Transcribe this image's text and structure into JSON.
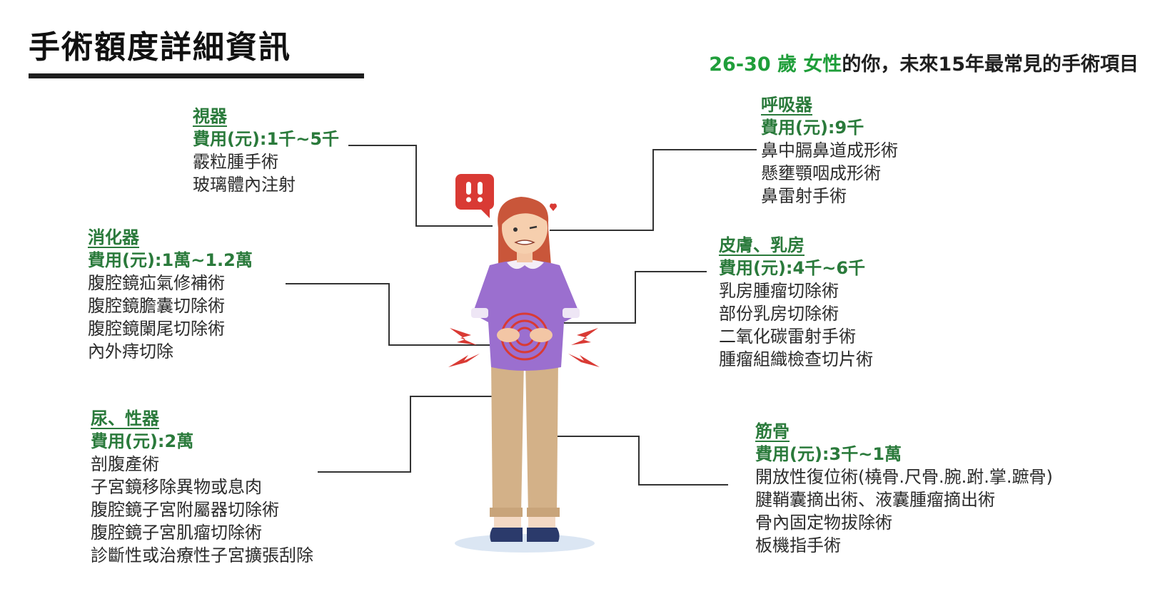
{
  "title": "手術額度詳細資訊",
  "subtitle": {
    "age": "26-30 歲",
    "gender": "女性",
    "rest": "的你，未來15年最常見的手術項目"
  },
  "sections": {
    "vision": {
      "title": "視器",
      "cost": "費用(元):1千~5千",
      "items": [
        "霰粒腫手術",
        "玻璃體內注射"
      ]
    },
    "digestive": {
      "title": "消化器",
      "cost": "費用(元):1萬~1.2萬",
      "items": [
        "腹腔鏡疝氣修補術",
        "腹腔鏡膽囊切除術",
        "腹腔鏡闌尾切除術",
        "內外痔切除"
      ]
    },
    "urogenital": {
      "title": "尿、性器",
      "cost": "費用(元):2萬",
      "items": [
        "剖腹產術",
        "子宮鏡移除異物或息肉",
        "腹腔鏡子宮附屬器切除術",
        "腹腔鏡子宮肌瘤切除術",
        "診斷性或治療性子宮擴張刮除"
      ]
    },
    "respiratory": {
      "title": "呼吸器",
      "cost": "費用(元):9千",
      "items": [
        "鼻中膈鼻道成形術",
        "懸壅顎咽成形術",
        "鼻雷射手術"
      ]
    },
    "skin_breast": {
      "title": "皮膚、乳房",
      "cost": "費用(元):4千~6千",
      "items": [
        "乳房腫瘤切除術",
        "部份乳房切除術",
        "二氧化碳雷射手術",
        "腫瘤組織檢查切片術"
      ]
    },
    "musculoskeletal": {
      "title": "筋骨",
      "cost": "費用(元):3千~1萬",
      "items": [
        "開放性復位術(橈骨.尺骨.腕.跗.掌.蹠骨)",
        "腱鞘囊摘出術、液囊腫瘤摘出術",
        "骨內固定物拔除術",
        "板機指手術"
      ]
    }
  },
  "colors": {
    "accent_green": "#1f9e3a",
    "section_green": "#2a7a3b",
    "sweater": "#9b6fcf",
    "pants": "#d3b188",
    "hair": "#c9563a",
    "alert_red": "#d93a34"
  }
}
